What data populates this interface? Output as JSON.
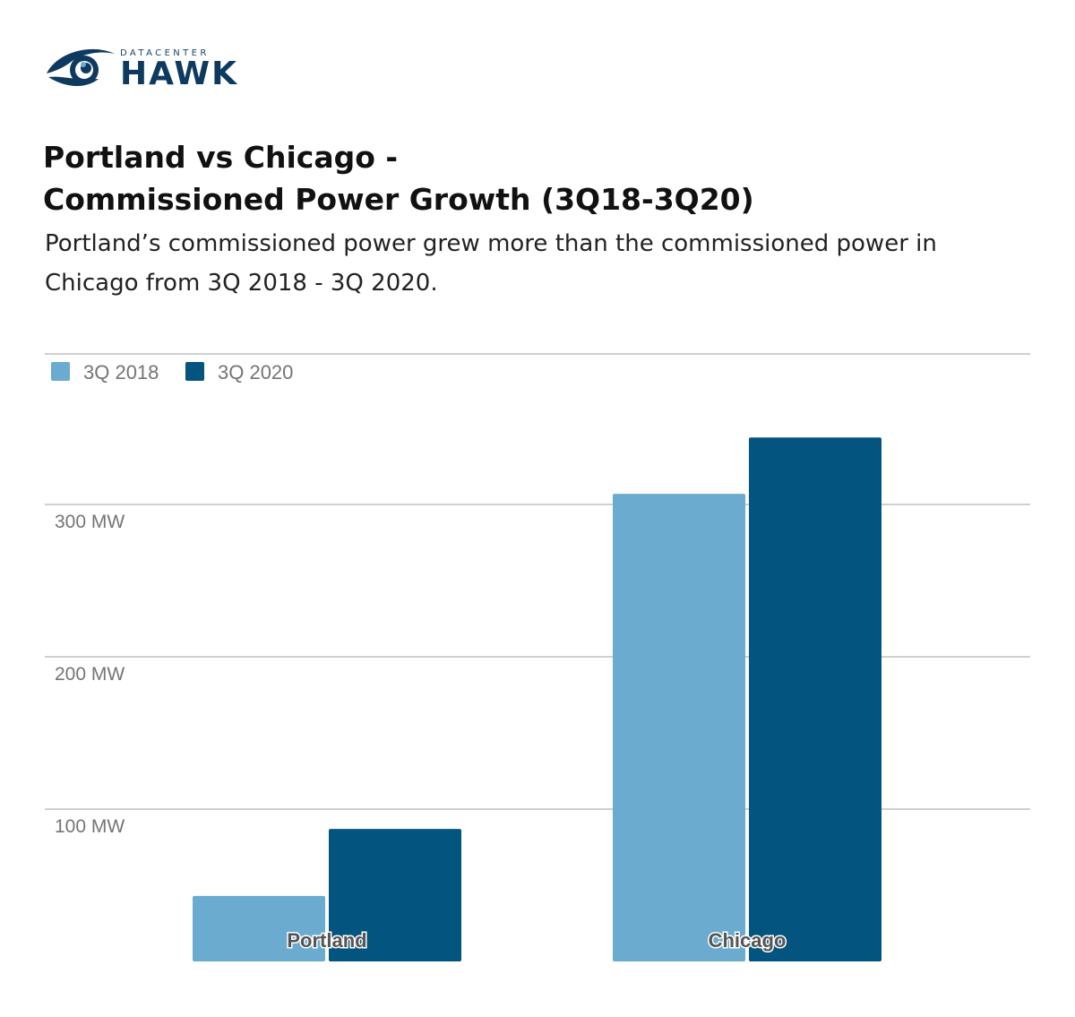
{
  "brand": {
    "top": "DATACENTER",
    "main": "HAWK",
    "color": "#0d3a5e"
  },
  "header": {
    "title_line1": "Portland vs Chicago -",
    "title_line2": "Commissioned Power Growth (3Q18-3Q20)",
    "subtitle_line1": "Portland’s commissioned power grew more than the commissioned power in",
    "subtitle_line2": "Chicago from 3Q 2018 - 3Q 2020."
  },
  "chart_data": {
    "type": "bar",
    "categories": [
      "Portland",
      "Chicago"
    ],
    "series": [
      {
        "name": "3Q 2018",
        "values": [
          43,
          307
        ],
        "color": "#6aabcf"
      },
      {
        "name": "3Q 2020",
        "values": [
          87,
          344
        ],
        "color": "#03547f"
      }
    ],
    "y_ticks": [
      100,
      200,
      300
    ],
    "y_tick_labels": [
      "100 MW",
      "200 MW",
      "300 MW"
    ],
    "ylim": [
      0,
      400
    ],
    "grid": true,
    "legend_position": "top-left"
  }
}
